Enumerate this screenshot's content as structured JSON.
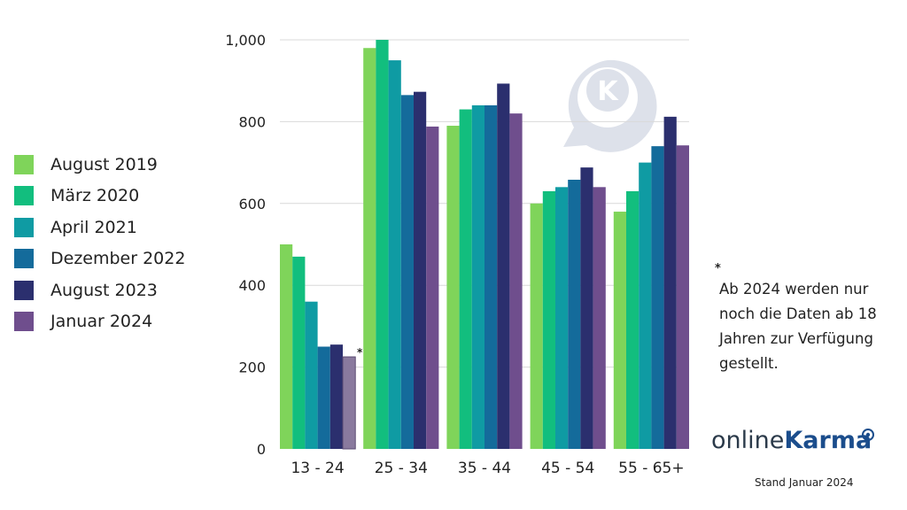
{
  "chart_data": {
    "type": "bar",
    "categories": [
      "13 - 24",
      "25 - 34",
      "35 - 44",
      "45 - 54",
      "55 - 65+"
    ],
    "series": [
      {
        "name": "August 2019",
        "color": "#7fd45a",
        "values": [
          500,
          980,
          790,
          600,
          580
        ]
      },
      {
        "name": "März 2020",
        "color": "#12be7e",
        "values": [
          470,
          1000,
          830,
          630,
          630
        ]
      },
      {
        "name": "April 2021",
        "color": "#0f9ba3",
        "values": [
          360,
          950,
          840,
          640,
          700
        ]
      },
      {
        "name": "Dezember 2022",
        "color": "#146b9b",
        "values": [
          250,
          865,
          840,
          658,
          740
        ]
      },
      {
        "name": "August 2023",
        "color": "#2b2f6e",
        "values": [
          255,
          873,
          893,
          688,
          812
        ]
      },
      {
        "name": "Januar 2024",
        "color": "#6f4e8d",
        "values": [
          225,
          788,
          820,
          640,
          742
        ]
      }
    ],
    "ylim": [
      0,
      1000
    ],
    "yticks": [
      0,
      200,
      400,
      600,
      800,
      1000
    ],
    "ytick_labels": [
      "0",
      "200",
      "400",
      "600",
      "800",
      "1,000"
    ],
    "grid": true,
    "legend_position": "left",
    "annotations": [
      {
        "text": "*",
        "category": "13 - 24",
        "series": "Januar 2024"
      }
    ]
  },
  "note": {
    "marker": "*",
    "text": "Ab 2024 werden nur noch die Daten ab 18 Jahren zur Verfügung gestellt."
  },
  "brand": {
    "part1": "online",
    "part2": "Karma"
  },
  "watermark": {
    "letter": "K"
  },
  "footer": {
    "stand": "Stand Januar 2024"
  },
  "colors": {
    "grid": "#d9d9d9",
    "text": "#222222",
    "watermark": "#dde1ea",
    "brand_dark": "#2b3a4a",
    "brand_blue": "#1b4d8c"
  }
}
